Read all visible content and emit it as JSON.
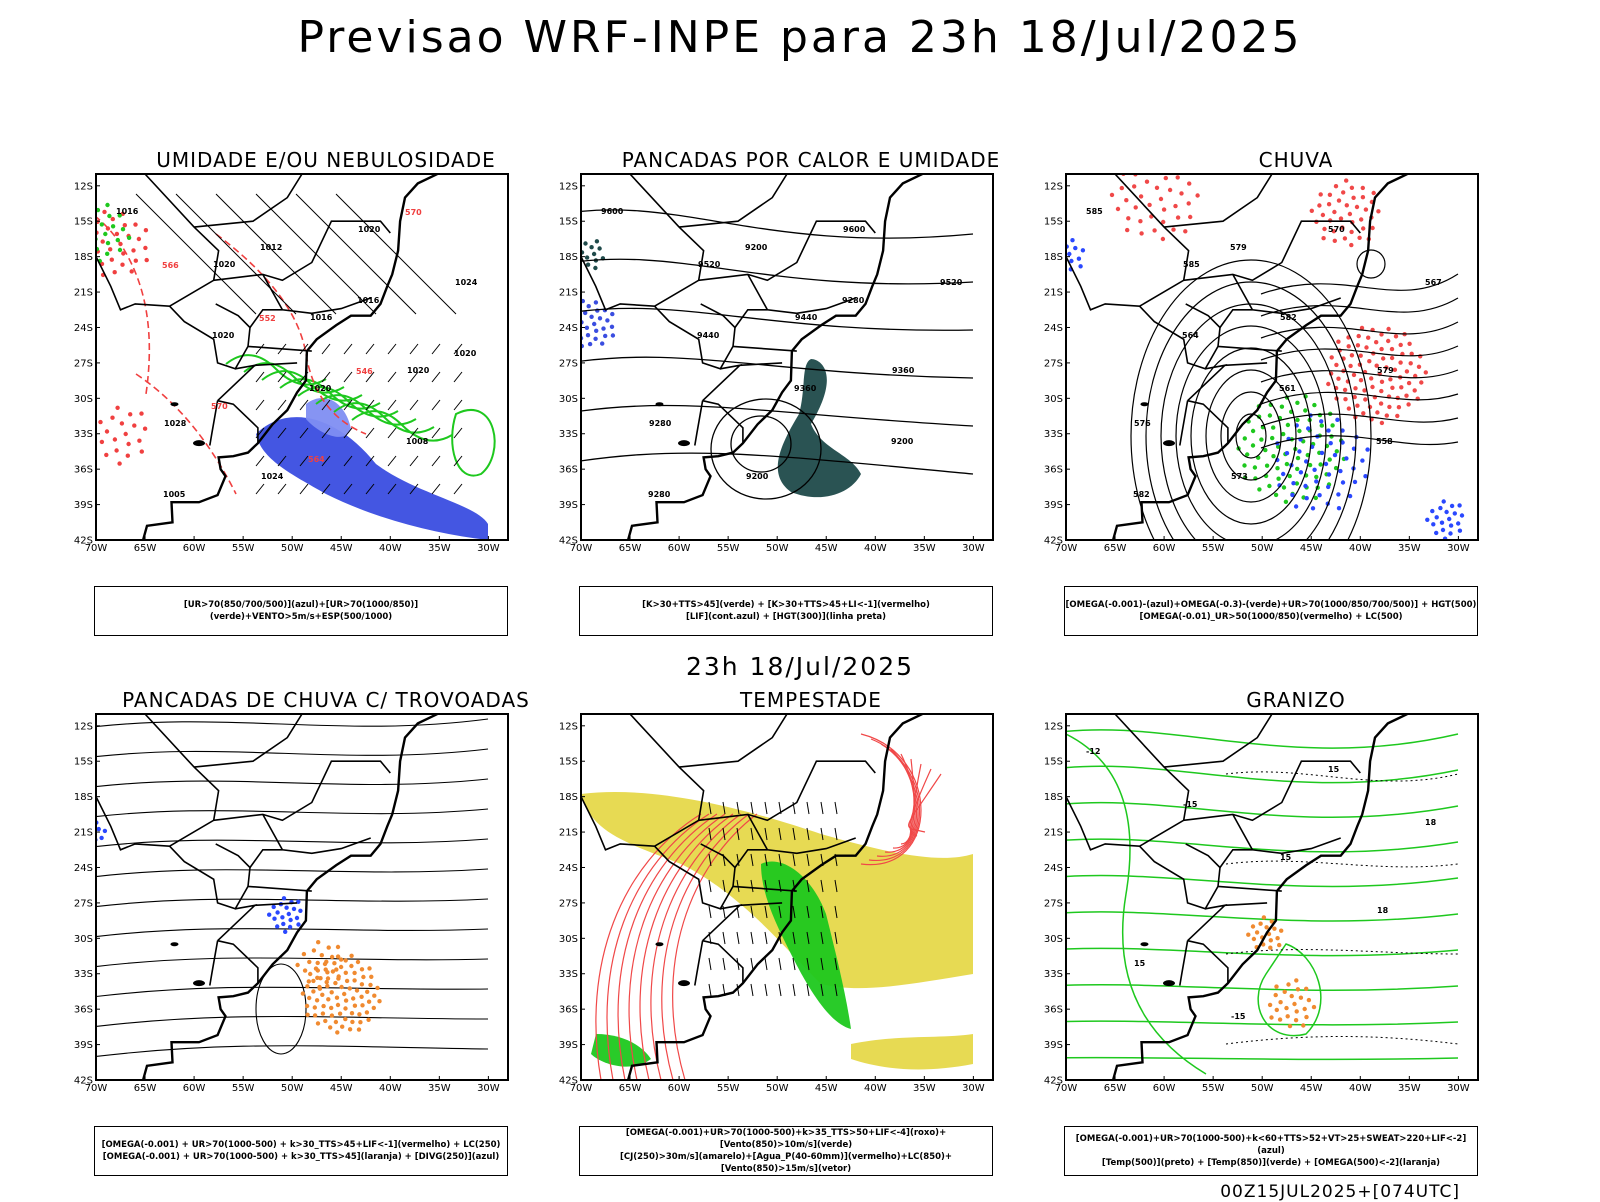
{
  "title": "Previsao WRF-INPE  para 23h 18/Jul/2025",
  "mid_title": "23h 18/Jul/2025",
  "footer": "00Z15JUL2025+[074UTC]",
  "lat_labels": [
    "12S",
    "15S",
    "18S",
    "21S",
    "24S",
    "27S",
    "30S",
    "33S",
    "36S",
    "39S",
    "42S"
  ],
  "lon_labels": [
    "70W",
    "65W",
    "60W",
    "55W",
    "50W",
    "45W",
    "40W",
    "35W",
    "30W"
  ],
  "panels": [
    {
      "title": "UMIDADE E/OU NEBULOSIDADE",
      "legend": [
        "[UR>70(850/700/500)](azul)+[UR>70(1000/850)](verde)+VENTO>5m/s+ESP(500/1000)"
      ],
      "labels": [
        "1016",
        "1020",
        "1016",
        "1020",
        "1028",
        "1024",
        "1020",
        "1024",
        "1020",
        "1020",
        "1008",
        "1005",
        "1012",
        "1016",
        "1020",
        "570",
        "564",
        "570",
        "566",
        "552",
        "546"
      ],
      "colors": {
        "humid_high": "#3a4de0",
        "humid_low": "#1ec81e",
        "thickness": "#f04040"
      }
    },
    {
      "title": "PANCADAS POR CALOR E UMIDADE",
      "legend": [
        "[K>30+TTS>45](verde) + [K>30+TTS>45+LI<-1](vermelho)",
        "[LIF](cont.azul) + [HGT(300)](linha preta)"
      ],
      "labels": [
        "9600",
        "9520",
        "9440",
        "9360",
        "9280",
        "9200",
        "9600",
        "9520",
        "9440",
        "9360",
        "9200",
        "9280",
        "9200",
        "9280"
      ],
      "colors": {
        "shade": "#1f4a4a"
      }
    },
    {
      "title": "CHUVA",
      "legend": [
        "[OMEGA(-0.001)-(azul)+OMEGA(-0.3)-(verde)+UR>70(1000/850/700/500)] + HGT(500)",
        "[OMEGA(-0.01)_UR>50(1000/850)(vermelho) + LC(500)"
      ],
      "labels": [
        "585",
        "585",
        "582",
        "579",
        "576",
        "573",
        "570",
        "567",
        "564",
        "561",
        "558",
        "582",
        "579"
      ],
      "colors": {
        "rain_red": "#f04848",
        "rain_blue": "#2a48ff",
        "rain_green": "#1ec81e"
      }
    },
    {
      "title": "PANCADAS DE CHUVA C/ TROVOADAS",
      "legend": [
        "[OMEGA(-0.001) + UR>70(1000-500) + k>30_TTS>45+LIF<-1](vermelho) + LC(250)",
        "[OMEGA(-0.001) + UR>70(1000-500) + k>30_TTS>45](laranja) + [DIVG(250)](azul)"
      ],
      "labels": [],
      "colors": {
        "orange": "#f08a30",
        "blue": "#2a48ff",
        "red": "#f04848"
      }
    },
    {
      "title": "TEMPESTADE",
      "legend": [
        "[OMEGA(-0.001)+UR>70(1000-500)+k>35_TTS>50+LIF<-4](roxo)+[Vento(850)>10m/s](verde)",
        "[CJ(250)>30m/s](amarelo)+[Agua_P(40-60mm)](vermelho)+LC(850)+[Vento(850)>15m/s](vetor)"
      ],
      "labels": [],
      "colors": {
        "yellow": "#e6d84a",
        "green": "#1ec81e",
        "red": "#f04848"
      }
    },
    {
      "title": "GRANIZO",
      "legend": [
        "[OMEGA(-0.001)+UR>70(1000-500)+k<60+TTS>52+VT>25+SWEAT>220+LIF<-2](azul)",
        "[Temp(500)](preto) + [Temp(850)](verde) + [OMEGA(500)<-2](laranja)"
      ],
      "labels": [
        "-12",
        "-15",
        "15",
        "18",
        "15",
        "-15",
        "15",
        "18"
      ],
      "colors": {
        "green": "#1ec81e",
        "orange": "#f08a30"
      }
    }
  ]
}
